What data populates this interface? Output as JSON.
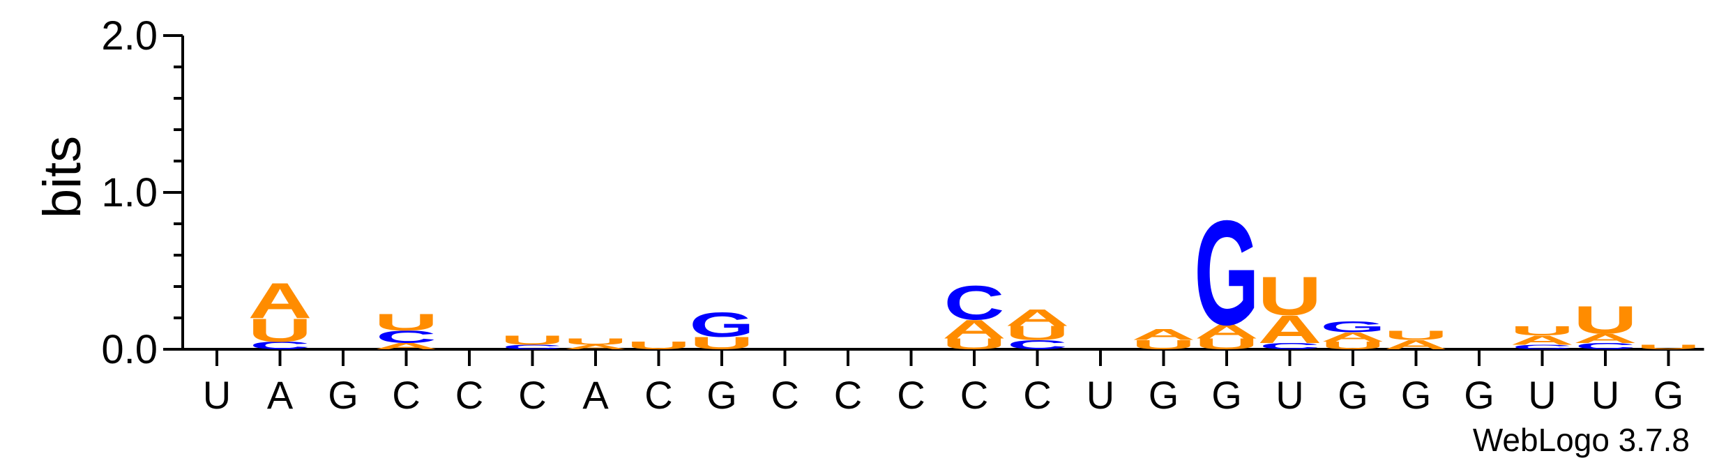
{
  "chart_data": {
    "type": "sequence-logo",
    "ylabel": "bits",
    "ylim": [
      0,
      2.0
    ],
    "yticks": [
      "0.0",
      "1.0",
      "2.0"
    ],
    "credit": "WebLogo 3.7.8",
    "colors": {
      "A": "#ff8c00",
      "U": "#ff8c00",
      "C": "#0000ff",
      "G": "#0000ff"
    },
    "positions": [
      {
        "label": "U",
        "stack": []
      },
      {
        "label": "A",
        "stack": [
          [
            "C",
            0.05
          ],
          [
            "U",
            0.15
          ],
          [
            "A",
            0.23
          ]
        ]
      },
      {
        "label": "G",
        "stack": []
      },
      {
        "label": "C",
        "stack": [
          [
            "A",
            0.04
          ],
          [
            "C",
            0.08
          ],
          [
            "U",
            0.11
          ]
        ]
      },
      {
        "label": "C",
        "stack": []
      },
      {
        "label": "C",
        "stack": [
          [
            "C",
            0.03
          ],
          [
            "U",
            0.06
          ]
        ]
      },
      {
        "label": "A",
        "stack": [
          [
            "A",
            0.03
          ],
          [
            "U",
            0.04
          ]
        ]
      },
      {
        "label": "C",
        "stack": [
          [
            "U",
            0.05
          ]
        ]
      },
      {
        "label": "G",
        "stack": [
          [
            "U",
            0.08
          ],
          [
            "G",
            0.16
          ]
        ]
      },
      {
        "label": "C",
        "stack": []
      },
      {
        "label": "C",
        "stack": []
      },
      {
        "label": "C",
        "stack": []
      },
      {
        "label": "C",
        "stack": [
          [
            "U",
            0.07
          ],
          [
            "A",
            0.12
          ],
          [
            "C",
            0.22
          ]
        ]
      },
      {
        "label": "C",
        "stack": [
          [
            "C",
            0.06
          ],
          [
            "U",
            0.09
          ],
          [
            "A",
            0.11
          ]
        ]
      },
      {
        "label": "U",
        "stack": []
      },
      {
        "label": "G",
        "stack": [
          [
            "U",
            0.06
          ],
          [
            "A",
            0.07
          ]
        ]
      },
      {
        "label": "G",
        "stack": [
          [
            "U",
            0.07
          ],
          [
            "A",
            0.09
          ],
          [
            "G",
            0.68
          ]
        ]
      },
      {
        "label": "U",
        "stack": [
          [
            "C",
            0.04
          ],
          [
            "A",
            0.18
          ],
          [
            "U",
            0.25
          ]
        ]
      },
      {
        "label": "G",
        "stack": [
          [
            "U",
            0.05
          ],
          [
            "A",
            0.06
          ],
          [
            "G",
            0.07
          ]
        ]
      },
      {
        "label": "G",
        "stack": [
          [
            "A",
            0.06
          ],
          [
            "U",
            0.06
          ]
        ]
      },
      {
        "label": "G",
        "stack": []
      },
      {
        "label": "U",
        "stack": [
          [
            "C",
            0.03
          ],
          [
            "A",
            0.06
          ],
          [
            "U",
            0.06
          ]
        ]
      },
      {
        "label": "U",
        "stack": [
          [
            "C",
            0.04
          ],
          [
            "A",
            0.06
          ],
          [
            "U",
            0.18
          ]
        ]
      },
      {
        "label": "G",
        "stack": [
          [
            "U",
            0.03
          ]
        ]
      }
    ]
  }
}
